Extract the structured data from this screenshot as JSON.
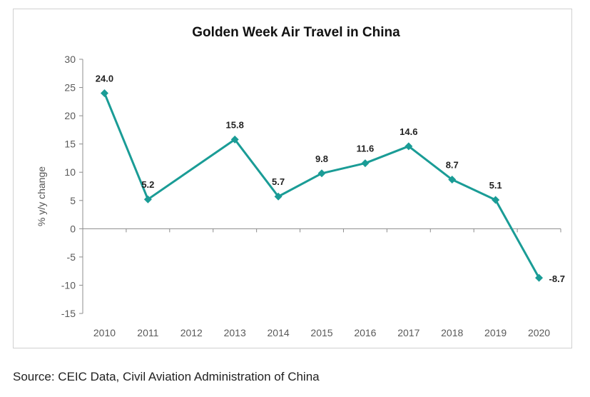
{
  "chart_data": {
    "type": "line",
    "title": "Golden Week Air Travel in China",
    "xlabel": "",
    "ylabel": "% y/y change",
    "categories": [
      "2010",
      "2011",
      "2012",
      "2013",
      "2014",
      "2015",
      "2016",
      "2017",
      "2018",
      "2019",
      "2020"
    ],
    "series": [
      {
        "values": [
          24.0,
          5.2,
          null,
          15.8,
          5.7,
          9.8,
          11.6,
          14.6,
          8.7,
          5.1,
          -8.7
        ],
        "labels": [
          "24.0",
          "5.2",
          "",
          "15.8",
          "5.7",
          "9.8",
          "11.6",
          "14.6",
          "8.7",
          "5.1",
          "-8.7"
        ],
        "color": "#1a9c96",
        "marker": "diamond"
      }
    ],
    "ylim": [
      -15,
      30
    ],
    "yticks": [
      "30",
      "25",
      "20",
      "15",
      "10",
      "5",
      "0",
      "-5",
      "-10",
      "-15"
    ],
    "grid": false,
    "legend": "none"
  },
  "source": "Source: CEIC Data, Civil Aviation Administration of China"
}
